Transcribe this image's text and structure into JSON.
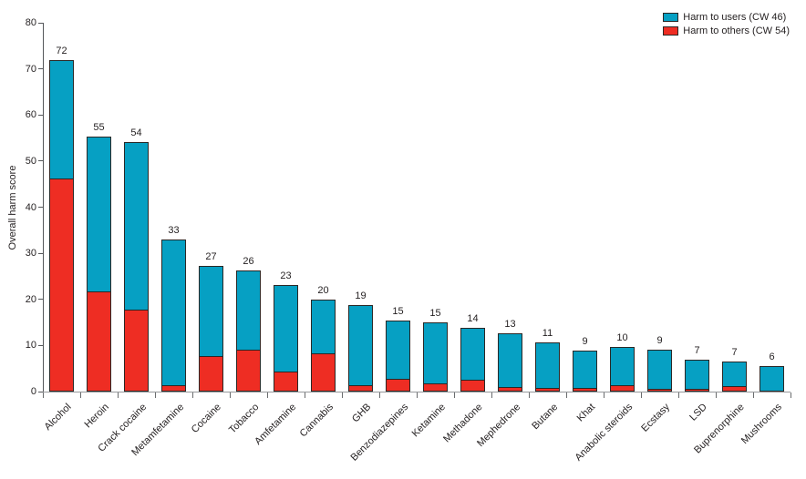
{
  "chart_data": {
    "type": "bar",
    "stacked": true,
    "title": "",
    "xlabel": "",
    "ylabel": "Overall harm score",
    "ylim": [
      0,
      80
    ],
    "yticks": [
      0,
      10,
      20,
      30,
      40,
      50,
      60,
      70,
      80
    ],
    "grid": false,
    "legend_position": "top-right",
    "categories": [
      "Alcohol",
      "Heroin",
      "Crack cocaine",
      "Metamfetamine",
      "Cocaine",
      "Tobacco",
      "Amfetamine",
      "Cannabis",
      "GHB",
      "Benzodiazepines",
      "Ketamine",
      "Methadone",
      "Mephedrone",
      "Butane",
      "Khat",
      "Anabolic steroids",
      "Ecstasy",
      "LSD",
      "Buprenorphine",
      "Mushrooms"
    ],
    "series": [
      {
        "name": "Harm to users (CW 46)",
        "color": "#06a0c3",
        "values": [
          26.0,
          33.8,
          36.7,
          31.8,
          19.6,
          17.3,
          19.1,
          11.9,
          17.7,
          12.8,
          13.4,
          11.5,
          11.9,
          10.2,
          8.3,
          8.5,
          8.6,
          6.7,
          5.6,
          5.5
        ]
      },
      {
        "name": "Harm to others (CW 54)",
        "color": "#ee2d23",
        "values": [
          46.0,
          21.5,
          17.5,
          1.2,
          7.6,
          8.9,
          4.1,
          8.1,
          1.1,
          2.6,
          1.6,
          2.3,
          0.7,
          0.5,
          0.6,
          1.1,
          0.4,
          0.3,
          1.0,
          0.0
        ]
      }
    ],
    "bar_labels": [
      "72",
      "55",
      "54",
      "33",
      "27",
      "26",
      "23",
      "20",
      "19",
      "15",
      "15",
      "14",
      "13",
      "11",
      "9",
      "10",
      "9",
      "7",
      "7",
      "6"
    ],
    "colors": {
      "bar_outline": "#2b2826",
      "y_axis": "#55575a",
      "x_baseline": "#97999c",
      "x_tick": "#6a6c6e",
      "text": "#231f20",
      "background": "#ffffff"
    }
  }
}
